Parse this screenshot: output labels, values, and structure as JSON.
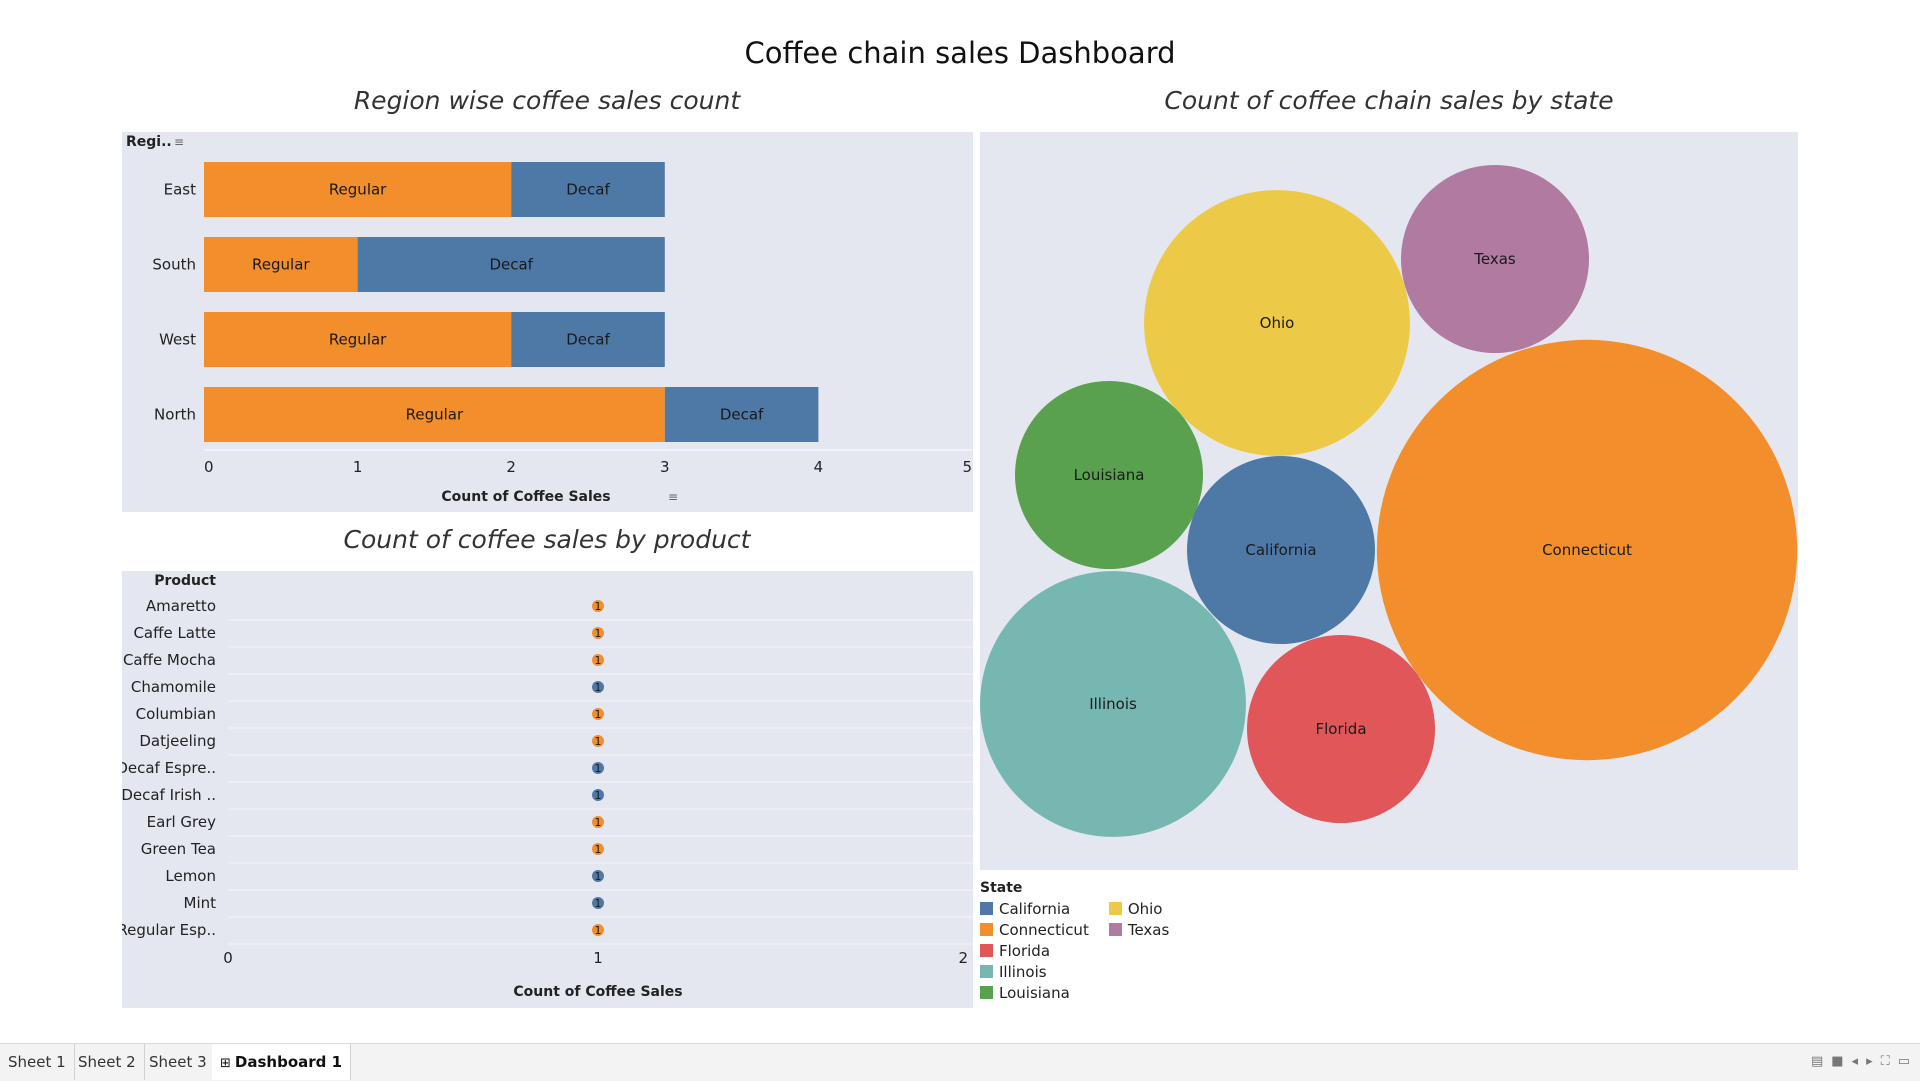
{
  "dashboard": {
    "title": "Coffee chain sales Dashboard"
  },
  "chart_data": [
    {
      "type": "bar",
      "orientation": "horizontal",
      "stacked": true,
      "title": "Region wise coffee sales count",
      "row_header": "Regi..",
      "categories": [
        "East",
        "South",
        "West",
        "North"
      ],
      "series": [
        {
          "name": "Regular",
          "values": [
            2,
            1,
            2,
            3
          ],
          "color": "#f28e2b"
        },
        {
          "name": "Decaf",
          "values": [
            1,
            2,
            1,
            1
          ],
          "color": "#4e79a7"
        }
      ],
      "xlabel": "Count of Coffee Sales",
      "xlim": [
        0,
        5
      ],
      "xticks": [
        "0",
        "1",
        "2",
        "3",
        "4",
        "5"
      ]
    },
    {
      "type": "scatter",
      "title": "Count of coffee sales by product",
      "row_header": "Product",
      "categories": [
        "Amaretto",
        "Caffe Latte",
        "Caffe Mocha",
        "Chamomile",
        "Columbian",
        "Datjeeling",
        "Decaf Espre..",
        "Decaf Irish ..",
        "Earl Grey",
        "Green Tea",
        "Lemon",
        "Mint",
        "Regular Esp.."
      ],
      "values": [
        1,
        1,
        1,
        1,
        1,
        1,
        1,
        1,
        1,
        1,
        1,
        1,
        1
      ],
      "labels": [
        "1",
        "1",
        "1",
        "1",
        "1",
        "1",
        "1",
        "1",
        "1",
        "1",
        "1",
        "1",
        "1"
      ],
      "point_colors": [
        "#f28e2b",
        "#f28e2b",
        "#f28e2b",
        "#4e79a7",
        "#f28e2b",
        "#f28e2b",
        "#4e79a7",
        "#4e79a7",
        "#f28e2b",
        "#f28e2b",
        "#4e79a7",
        "#4e79a7",
        "#f28e2b"
      ],
      "xlabel": "Count of Coffee Sales",
      "xlim": [
        0,
        2
      ],
      "xticks": [
        "0",
        "1",
        "2"
      ]
    },
    {
      "type": "bubble",
      "title": "Count of coffee chain sales by state",
      "legend_title": "State",
      "legend_position": "bottom-left",
      "states": [
        {
          "name": "Connecticut",
          "value": 5,
          "color": "#f28e2b"
        },
        {
          "name": "Ohio",
          "value": 2,
          "color": "#edc948"
        },
        {
          "name": "Illinois",
          "value": 2,
          "color": "#76b7b2"
        },
        {
          "name": "Texas",
          "value": 1,
          "color": "#b07aa1"
        },
        {
          "name": "Louisiana",
          "value": 1,
          "color": "#59a14f"
        },
        {
          "name": "California",
          "value": 1,
          "color": "#4e79a7"
        },
        {
          "name": "Florida",
          "value": 1,
          "color": "#e15759"
        }
      ],
      "legend": {
        "col1": [
          "California",
          "Connecticut",
          "Florida",
          "Illinois",
          "Louisiana"
        ],
        "col2": [
          "Ohio",
          "Texas"
        ]
      }
    }
  ],
  "tabs": [
    {
      "label": "Sheet 1",
      "active": false
    },
    {
      "label": "Sheet 2",
      "active": false
    },
    {
      "label": "Sheet 3",
      "active": false
    },
    {
      "label": "Dashboard 1",
      "active": true
    }
  ],
  "colors": {
    "regular": "#f28e2b",
    "decaf": "#4e79a7",
    "panel_bg": "#e4e7f0"
  }
}
